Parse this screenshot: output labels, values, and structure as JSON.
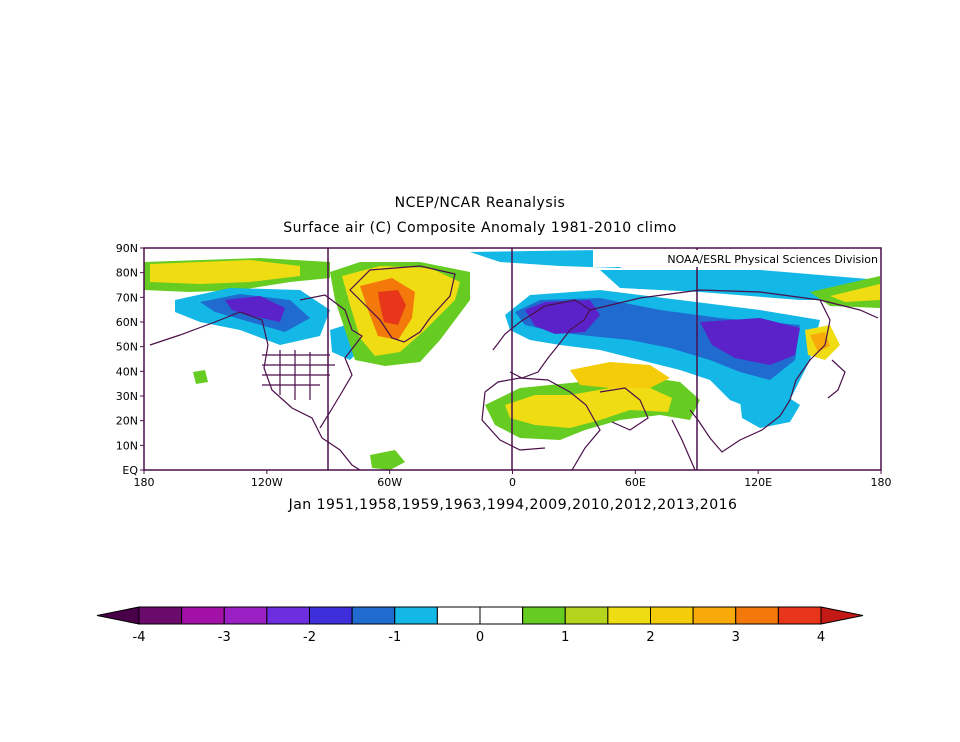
{
  "title_line1": "NCEP/NCAR Reanalysis",
  "title_line2": "Surface air (C) Composite Anomaly 1981-2010 climo",
  "credit": "NOAA/ESRL Physical Sciences Division",
  "subtitle": "Jan 1951,1958,1959,1963,1994,2009,2010,2012,2013,2016",
  "lat_labels": [
    "90N",
    "80N",
    "70N",
    "60N",
    "50N",
    "40N",
    "30N",
    "20N",
    "10N",
    "EQ"
  ],
  "lon_labels": [
    "180",
    "120W",
    "60W",
    "0",
    "60E",
    "120E",
    "180"
  ],
  "colorbar": {
    "ticks": [
      "-4",
      "-3",
      "-2",
      "-1",
      "0",
      "1",
      "2",
      "3",
      "4"
    ],
    "colors": [
      "#6a0a6a",
      "#a210a8",
      "#9b20c4",
      "#6d2ee0",
      "#3d2fdc",
      "#1f6bd0",
      "#13b8e6",
      "#ffffff",
      "#ffffff",
      "#66cc22",
      "#b4d41e",
      "#f0dc12",
      "#f5cc0a",
      "#f7aa0a",
      "#f37a0a",
      "#e8361a"
    ],
    "low_arrow_color": "#4a0048",
    "high_arrow_color": "#c41a16"
  },
  "colors": {
    "frame": "#4b0f4b",
    "coast": "#4b0f4b",
    "neg_deep": "#5a22c8",
    "neg_mid": "#1f6bd0",
    "neg_light": "#13b8e6",
    "pos_light": "#66cc22",
    "pos_mid": "#f0dc12",
    "pos_high": "#f37a0a",
    "pos_peak": "#e8361a"
  }
}
